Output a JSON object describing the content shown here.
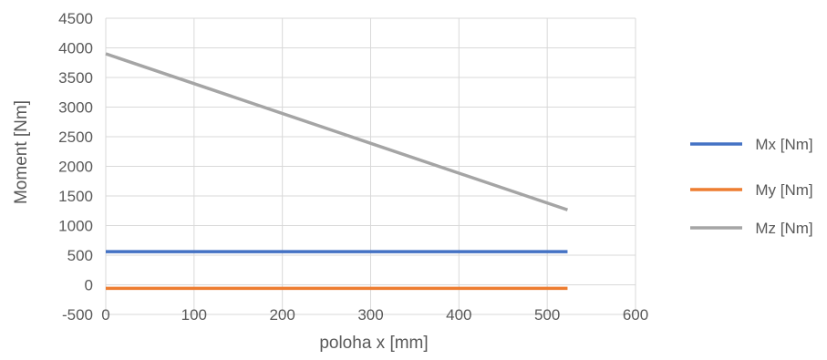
{
  "chart_data": {
    "type": "line",
    "title": "",
    "xlabel": "poloha x [mm]",
    "ylabel": "Moment [Nm]",
    "xlim": [
      0,
      600
    ],
    "ylim": [
      -500,
      4500
    ],
    "xticks": [
      0,
      100,
      200,
      300,
      400,
      500,
      600
    ],
    "yticks": [
      -500,
      0,
      500,
      1000,
      1500,
      2000,
      2500,
      3000,
      3500,
      4000,
      4500
    ],
    "xtick_labels": [
      "0",
      "100",
      "200",
      "300",
      "400",
      "500",
      "600"
    ],
    "ytick_labels": [
      "-500",
      "0",
      "500",
      "1000",
      "1500",
      "2000",
      "2500",
      "3000",
      "3500",
      "4000",
      "4500"
    ],
    "grid": true,
    "legend_position": "right",
    "series": [
      {
        "name": "Mx [Nm]",
        "color": "#4472C4",
        "x": [
          0,
          523
        ],
        "y": [
          560,
          560
        ]
      },
      {
        "name": "My [Nm]",
        "color": "#ED7D31",
        "x": [
          0,
          523
        ],
        "y": [
          -60,
          -60
        ]
      },
      {
        "name": "Mz [Nm]",
        "color": "#A5A5A5",
        "x": [
          0,
          523
        ],
        "y": [
          3900,
          1265
        ]
      }
    ]
  }
}
